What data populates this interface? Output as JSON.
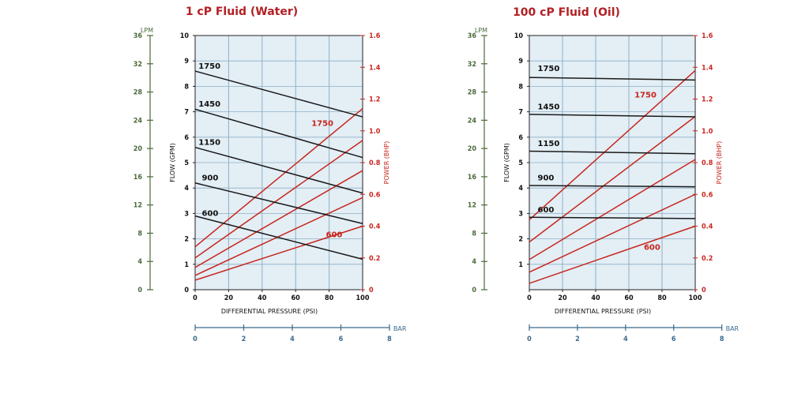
{
  "colors": {
    "flow": "#1a1a1a",
    "power": "#c8261e",
    "lpm": "#4a6a3a",
    "bar": "#3a6a8e",
    "title": "#b21f24",
    "grid": "#8fb0c6",
    "plot_bg": "#e3eef5"
  },
  "chart_data": [
    {
      "type": "line",
      "title": "1 cP Fluid (Water)",
      "xlabel": "DIFFERENTIAL PRESSURE (PSI)",
      "ylabel": "FLOW (GPM)",
      "y2label": "POWER (BHP)",
      "lpm_label": "LPM",
      "bar_label": "BAR",
      "xlim": [
        0,
        100
      ],
      "ylim": [
        0,
        10
      ],
      "y2lim": [
        0,
        1.6
      ],
      "lpm_lim": [
        0,
        36
      ],
      "bar_lim": [
        0,
        8
      ],
      "x_ticks": [
        "0",
        "20",
        "40",
        "60",
        "80",
        "100"
      ],
      "y_ticks": [
        "0",
        "1",
        "2",
        "3",
        "4",
        "5",
        "6",
        "7",
        "8",
        "9",
        "10"
      ],
      "y2_ticks": [
        "0",
        "0.2",
        "0.4",
        "0.6",
        "0.8",
        "1.0",
        "1.2",
        "1.4",
        "1.6"
      ],
      "lpm_ticks": [
        "0",
        "4",
        "8",
        "12",
        "16",
        "20",
        "24",
        "28",
        "32",
        "36"
      ],
      "bar_ticks": [
        "0",
        "2",
        "4",
        "6",
        "8"
      ],
      "flow_series": [
        {
          "name": "1750",
          "x": [
            0,
            100
          ],
          "values": [
            8.6,
            6.8
          ],
          "label_x": 2,
          "label_y": 8.7
        },
        {
          "name": "1450",
          "x": [
            0,
            100
          ],
          "values": [
            7.1,
            5.2
          ],
          "label_x": 2,
          "label_y": 7.2
        },
        {
          "name": "1150",
          "x": [
            0,
            100
          ],
          "values": [
            5.6,
            3.8
          ],
          "label_x": 2,
          "label_y": 5.7
        },
        {
          "name": "900",
          "x": [
            0,
            100
          ],
          "values": [
            4.2,
            2.6
          ],
          "label_x": 4,
          "label_y": 4.3
        },
        {
          "name": "600",
          "x": [
            0,
            100
          ],
          "values": [
            2.9,
            1.2
          ],
          "label_x": 4,
          "label_y": 2.9
        }
      ],
      "power_series": [
        {
          "name": "1750",
          "x": [
            0,
            100
          ],
          "values": [
            0.27,
            1.14
          ]
        },
        {
          "name": "1450",
          "x": [
            0,
            100
          ],
          "values": [
            0.2,
            0.94
          ]
        },
        {
          "name": "1150",
          "x": [
            0,
            100
          ],
          "values": [
            0.14,
            0.75
          ]
        },
        {
          "name": "900",
          "x": [
            0,
            100
          ],
          "values": [
            0.09,
            0.58
          ]
        },
        {
          "name": "600",
          "x": [
            0,
            100
          ],
          "values": [
            0.06,
            0.4
          ]
        }
      ],
      "power_labels": [
        {
          "text": "1750",
          "x": 76,
          "y": 1.03
        },
        {
          "text": "600",
          "x": 83,
          "y": 0.33
        }
      ]
    },
    {
      "type": "line",
      "title": "100 cP Fluid (Oil)",
      "xlabel": "DIFFERENTIAL PRESSURE (PSI)",
      "ylabel": "FLOW (GPM)",
      "y2label": "POWER (BHP)",
      "lpm_label": "LPM",
      "bar_label": "BAR",
      "xlim": [
        0,
        100
      ],
      "ylim": [
        0,
        10
      ],
      "y2lim": [
        0,
        1.6
      ],
      "lpm_lim": [
        0,
        36
      ],
      "bar_lim": [
        0,
        8
      ],
      "x_ticks": [
        "0",
        "20",
        "40",
        "60",
        "80",
        "100"
      ],
      "y_ticks": [
        "1",
        "2",
        "3",
        "4",
        "5",
        "6",
        "7",
        "8",
        "9",
        "10"
      ],
      "y2_ticks": [
        "0",
        "0.2",
        "0.4",
        "0.6",
        "0.8",
        "1.0",
        "1.2",
        "1.4",
        "1.6"
      ],
      "lpm_ticks": [
        "0",
        "4",
        "8",
        "12",
        "16",
        "20",
        "24",
        "28",
        "32",
        "36"
      ],
      "bar_ticks": [
        "0",
        "2",
        "4",
        "6",
        "8"
      ],
      "flow_series": [
        {
          "name": "1750",
          "x": [
            0,
            100
          ],
          "values": [
            8.35,
            8.25
          ],
          "label_x": 5,
          "label_y": 8.6
        },
        {
          "name": "1450",
          "x": [
            0,
            100
          ],
          "values": [
            6.9,
            6.8
          ],
          "label_x": 5,
          "label_y": 7.1
        },
        {
          "name": "1150",
          "x": [
            0,
            100
          ],
          "values": [
            5.45,
            5.35
          ],
          "label_x": 5,
          "label_y": 5.65
        },
        {
          "name": "900",
          "x": [
            0,
            100
          ],
          "values": [
            4.1,
            4.05
          ],
          "label_x": 5,
          "label_y": 4.3
        },
        {
          "name": "600",
          "x": [
            0,
            100
          ],
          "values": [
            2.85,
            2.8
          ],
          "label_x": 5,
          "label_y": 3.05
        }
      ],
      "power_series": [
        {
          "name": "1750",
          "x": [
            0,
            100
          ],
          "values": [
            0.44,
            1.38
          ]
        },
        {
          "name": "1450",
          "x": [
            0,
            100
          ],
          "values": [
            0.3,
            1.09
          ]
        },
        {
          "name": "1150",
          "x": [
            0,
            100
          ],
          "values": [
            0.19,
            0.82
          ]
        },
        {
          "name": "900",
          "x": [
            0,
            100
          ],
          "values": [
            0.11,
            0.6
          ]
        },
        {
          "name": "600",
          "x": [
            0,
            100
          ],
          "values": [
            0.04,
            0.4
          ]
        }
      ],
      "power_labels": [
        {
          "text": "1750",
          "x": 70,
          "y": 1.21
        },
        {
          "text": "600",
          "x": 74,
          "y": 0.25
        }
      ]
    }
  ]
}
